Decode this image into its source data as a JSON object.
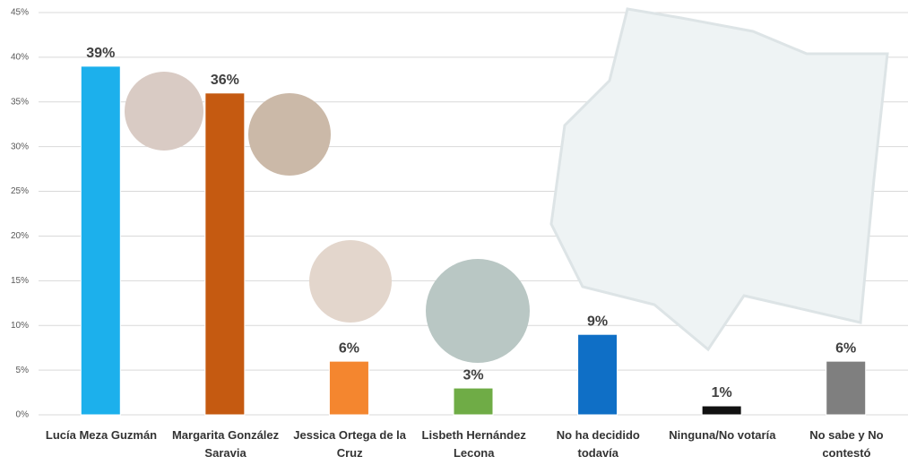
{
  "chart_data": {
    "type": "bar",
    "categories": [
      "Lucía Meza Guzmán",
      "Margarita González Saravia",
      "Jessica Ortega de la Cruz",
      "Lisbeth Hernández Lecona",
      "No ha decidido todavía",
      "Ninguna/No votaría",
      "No sabe y No contestó"
    ],
    "values": [
      39,
      36,
      6,
      3,
      9,
      1,
      6
    ],
    "value_labels": [
      "39%",
      "36%",
      "6%",
      "3%",
      "9%",
      "1%",
      "6%"
    ],
    "colors": [
      "#1cb0ec",
      "#c55a11",
      "#f4862f",
      "#6fac46",
      "#0f6fc6",
      "#111111",
      "#7f7f7f"
    ],
    "ylim": [
      0,
      45
    ],
    "yticks": [
      {
        "value": 0,
        "label": "0%"
      },
      {
        "value": 5,
        "label": "5%"
      },
      {
        "value": 10,
        "label": "10%"
      },
      {
        "value": 15,
        "label": "15%"
      },
      {
        "value": 20,
        "label": "20%"
      },
      {
        "value": 25,
        "label": "25%"
      },
      {
        "value": 30,
        "label": "30%"
      },
      {
        "value": 35,
        "label": "35%"
      },
      {
        "value": 40,
        "label": "40%"
      },
      {
        "value": 45,
        "label": "45%"
      }
    ],
    "grid": true
  }
}
